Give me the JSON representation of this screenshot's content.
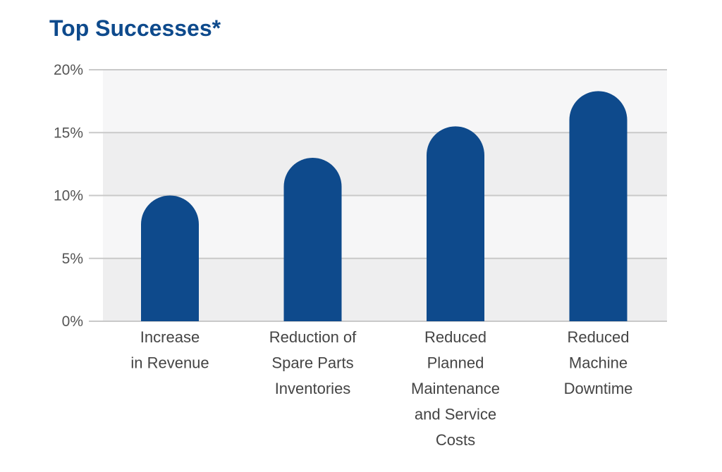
{
  "chart_data": {
    "type": "bar",
    "title": "Top Successes*",
    "xlabel": "",
    "ylabel": "",
    "categories": [
      [
        "Increase",
        "in Revenue"
      ],
      [
        "Reduction of",
        "Spare Parts",
        "Inventories"
      ],
      [
        "Reduced",
        "Planned",
        "Maintenance",
        "and Service",
        "Costs"
      ],
      [
        "Reduced",
        "Machine",
        "Downtime"
      ]
    ],
    "values": [
      10,
      13,
      15.5,
      18.3
    ],
    "ylim": [
      0,
      20
    ],
    "yticks": [
      "0%",
      "5%",
      "10%",
      "15%",
      "20%"
    ],
    "grid": true,
    "legend": "none",
    "colors": {
      "bar": "#0e4a8c",
      "title": "#0e4a8c",
      "band_dark": "#eeeeef",
      "band_light": "#f6f6f7",
      "gridline": "#c9c9c9"
    }
  }
}
